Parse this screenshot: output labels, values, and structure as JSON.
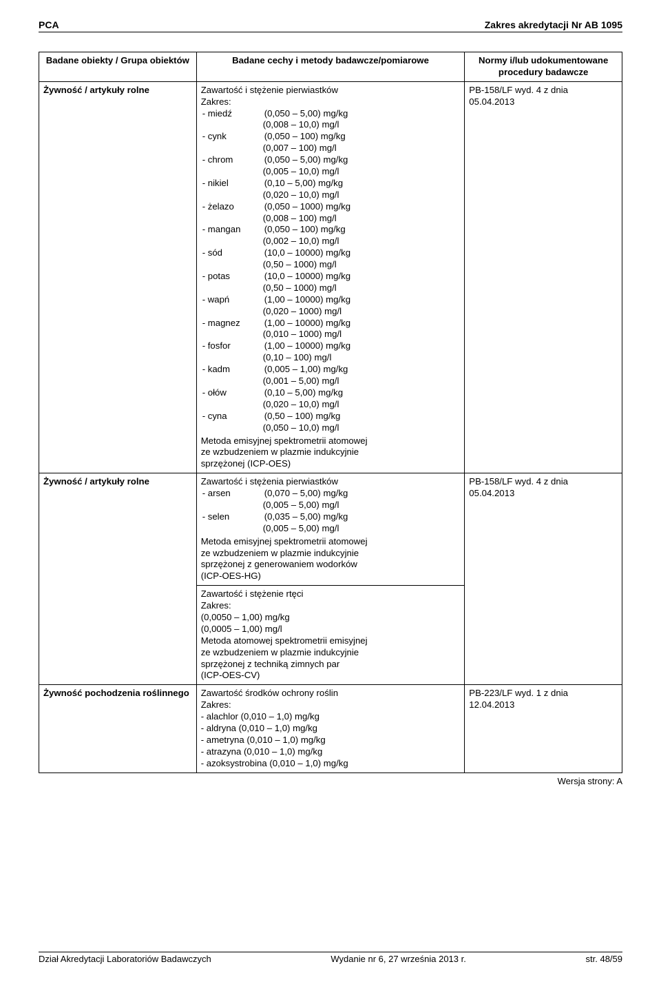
{
  "header": {
    "left": "PCA",
    "right": "Zakres akredytacji Nr AB 1095"
  },
  "colHeaders": {
    "a": "Badane obiekty / Grupa obiektów",
    "b": "Badane cechy i metody badawcze/pomiarowe",
    "c": "Normy i/lub udokumentowane procedury badawcze"
  },
  "row1": {
    "obj": "Żywność / artykuły rolne",
    "titleLine": "Zawartość i stężenie pierwiastków",
    "zakres": "Zakres:",
    "elements": [
      {
        "l": "- miedź",
        "v": "(0,050 – 5,00) mg/kg",
        "v2": "(0,008 – 10,0) mg/l"
      },
      {
        "l": "- cynk",
        "v": "(0,050 – 100) mg/kg",
        "v2": "(0,007 – 100) mg/l"
      },
      {
        "l": "- chrom",
        "v": "(0,050 – 5,00) mg/kg",
        "v2": "(0,005 – 10,0) mg/l"
      },
      {
        "l": "- nikiel",
        "v": "(0,10 – 5,00) mg/kg",
        "v2": "(0,020 – 10,0) mg/l"
      },
      {
        "l": "- żelazo",
        "v": "(0,050 – 1000) mg/kg",
        "v2": "(0,008 – 100) mg/l"
      },
      {
        "l": "- mangan",
        "v": "(0,050 – 100) mg/kg",
        "v2": "(0,002 – 10,0) mg/l"
      },
      {
        "l": "- sód",
        "v": "(10,0 – 10000) mg/kg",
        "v2": "(0,50 – 1000) mg/l"
      },
      {
        "l": "- potas",
        "v": "(10,0 – 10000) mg/kg",
        "v2": "(0,50 – 1000) mg/l"
      },
      {
        "l": "- wapń",
        "v": "(1,00 – 10000) mg/kg",
        "v2": "(0,020 – 1000) mg/l"
      },
      {
        "l": "- magnez",
        "v": "(1,00 – 10000) mg/kg",
        "v2": "(0,010 – 1000) mg/l"
      },
      {
        "l": "- fosfor",
        "v": "(1,00 – 10000) mg/kg",
        "v2": "(0,10 – 100) mg/l"
      },
      {
        "l": "- kadm",
        "v": "(0,005 – 1,00) mg/kg",
        "v2": "(0,001 – 5,00) mg/l"
      },
      {
        "l": "- ołów",
        "v": "(0,10 – 5,00) mg/kg",
        "v2": "(0,020 – 10,0) mg/l"
      },
      {
        "l": "- cyna",
        "v": "(0,50 – 100) mg/kg",
        "v2": "(0,050 – 10,0) mg/l"
      }
    ],
    "methodLines": [
      "Metoda emisyjnej spektrometrii atomowej",
      "ze wzbudzeniem w plazmie indukcyjnie",
      "sprzężonej (ICP-OES)"
    ],
    "normLines": [
      "PB-158/LF wyd. 4 z dnia",
      "05.04.2013"
    ]
  },
  "row2": {
    "obj": "Żywność / artykuły rolne",
    "block1": {
      "title": "Zawartość i stężenia  pierwiastków",
      "elements": [
        {
          "l": "- arsen",
          "v": "(0,070 – 5,00) mg/kg",
          "v2": "(0,005 – 5,00) mg/l"
        },
        {
          "l": "- selen",
          "v": "(0,035 – 5,00) mg/kg",
          "v2": "(0,005 – 5,00) mg/l"
        }
      ],
      "methodLines": [
        "Metoda emisyjnej spektrometrii atomowej",
        "ze wzbudzeniem w plazmie indukcyjnie",
        "sprzężonej z generowaniem wodorków",
        "(ICP-OES-HG)"
      ]
    },
    "block2": {
      "lines": [
        "Zawartość  i stężenie  rtęci",
        "Zakres:",
        "(0,0050 – 1,00) mg/kg",
        "(0,0005 – 1,00) mg/l",
        "Metoda atomowej spektrometrii emisyjnej",
        "ze wzbudzeniem w plazmie indukcyjnie",
        "sprzężonej z techniką zimnych par",
        "(ICP-OES-CV)"
      ]
    },
    "normLines": [
      "PB-158/LF wyd. 4 z dnia",
      "05.04.2013"
    ]
  },
  "row3": {
    "obj": "Żywność pochodzenia roślinnego",
    "lines": [
      "Zawartość środków ochrony roślin",
      "Zakres:",
      "- alachlor  (0,010 – 1,0) mg/kg",
      "- aldryna  (0,010 – 1,0) mg/kg",
      "- ametryna  (0,010 – 1,0) mg/kg",
      "- atrazyna  (0,010 – 1,0) mg/kg",
      "- azoksystrobina  (0,010 – 1,0) mg/kg"
    ],
    "normLines": [
      "PB-223/LF wyd. 1 z dnia",
      "12.04.2013"
    ]
  },
  "versionLine": "Wersja strony: A",
  "footer": {
    "left": "Dział Akredytacji Laboratoriów Badawczych",
    "mid": "Wydanie nr 6, 27 września 2013 r.",
    "right": "str. 48/59"
  }
}
